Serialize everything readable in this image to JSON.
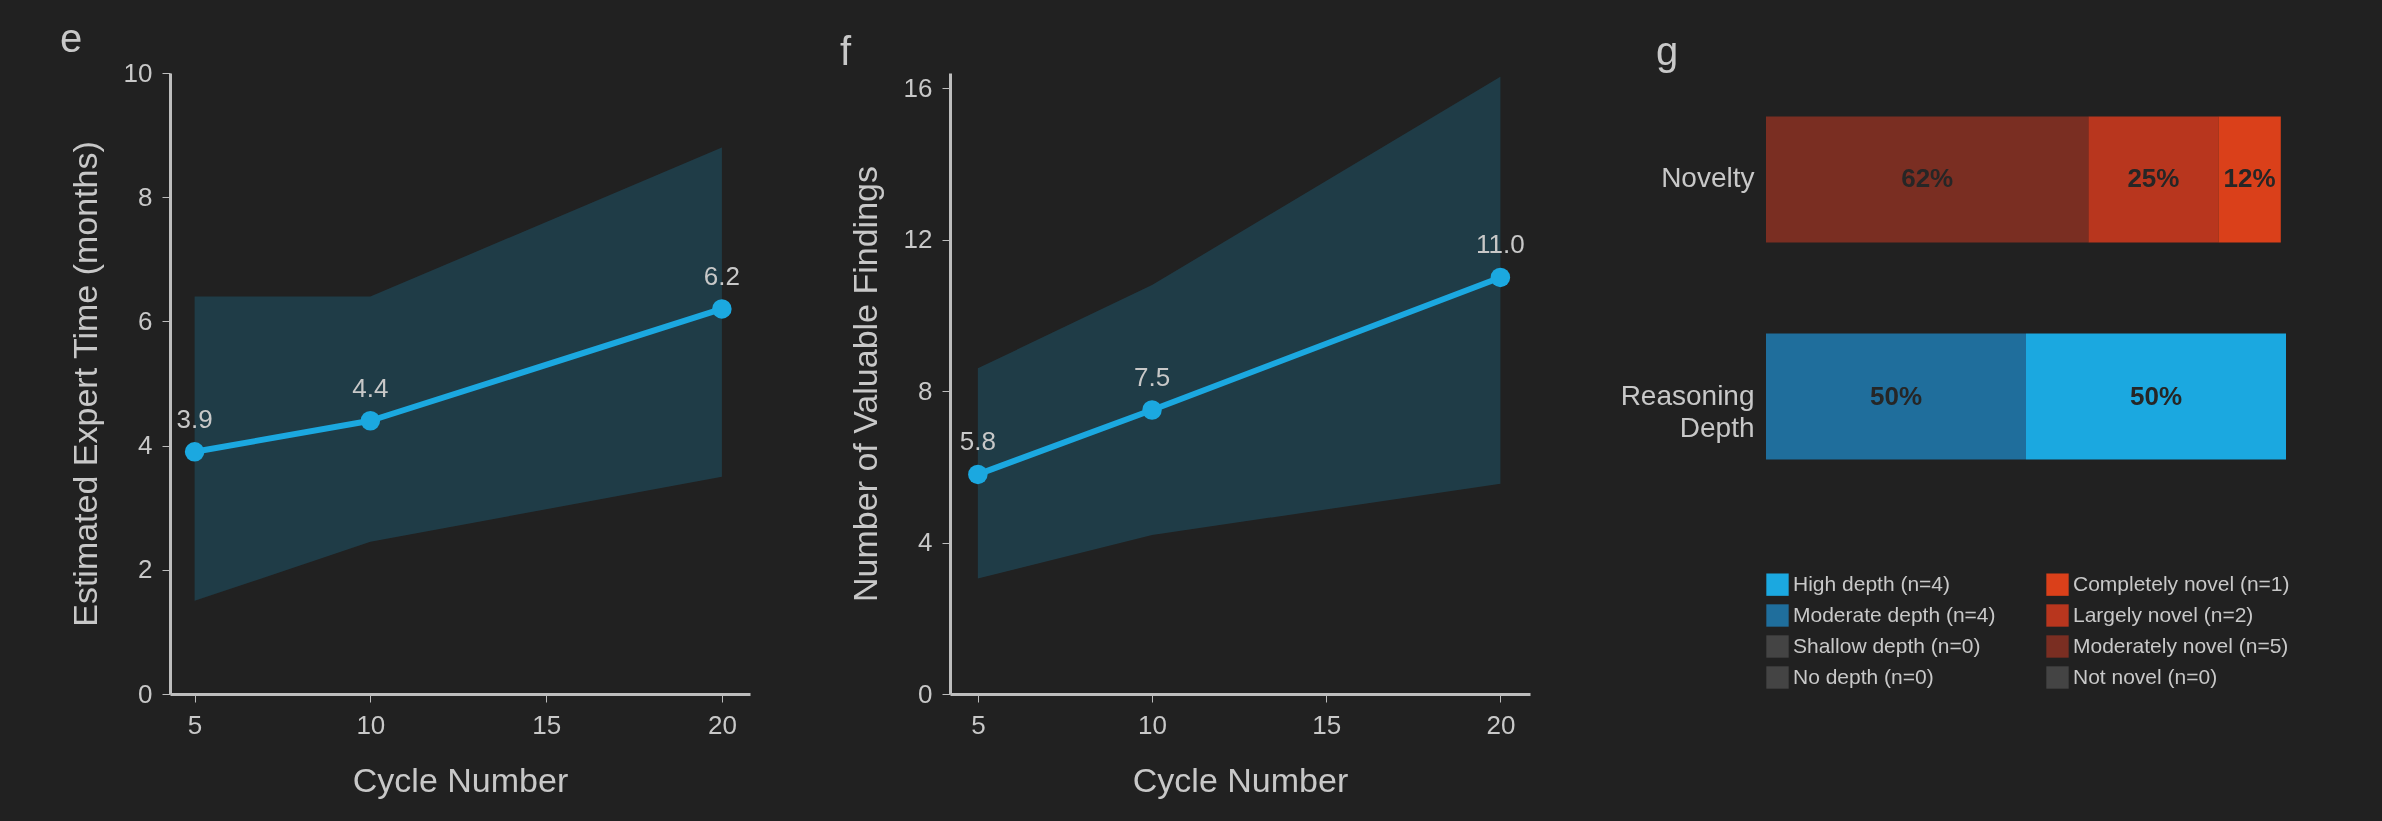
{
  "chart_data": [
    {
      "type": "line",
      "title": "e",
      "xlabel": "Cycle Number",
      "ylabel": "Estimated Expert Time (months)",
      "x": [
        5,
        10,
        20
      ],
      "series": [
        {
          "color": "#1ba8e0",
          "values": [
            3.9,
            4.4,
            6.2
          ],
          "lower": [
            1.5,
            2.45,
            3.5
          ],
          "upper": [
            6.4,
            6.4,
            8.8
          ],
          "value_labels": [
            "3.9",
            "4.4",
            "6.2"
          ]
        }
      ],
      "xlim": [
        4.3,
        20.8
      ],
      "ylim": [
        0,
        10
      ],
      "xticks": [
        5,
        10,
        15,
        20
      ],
      "yticks": [
        0,
        2,
        4,
        6,
        8,
        10
      ],
      "marker": "circle",
      "grid": false
    },
    {
      "type": "line",
      "title": "f",
      "xlabel": "Cycle Number",
      "ylabel": "Number of Valuable Findings",
      "x": [
        5,
        10,
        20
      ],
      "series": [
        {
          "color": "#1ba8e0",
          "values": [
            5.8,
            7.5,
            11.0
          ],
          "lower": [
            3.05,
            4.2,
            5.55
          ],
          "upper": [
            8.6,
            10.8,
            16.3
          ],
          "value_labels": [
            "5.8",
            "7.5",
            "11.0"
          ]
        }
      ],
      "xlim": [
        4.2,
        20.85
      ],
      "ylim": [
        0,
        16.4
      ],
      "xticks": [
        5,
        10,
        15,
        20
      ],
      "yticks": [
        0,
        4,
        8,
        12,
        16
      ],
      "marker": "circle",
      "grid": false
    },
    {
      "type": "bar",
      "title": "g",
      "orientation": "horizontal",
      "stacked": true,
      "categories": [
        "Novelty",
        "Reasoning Depth"
      ],
      "legend": "bottom",
      "series": [
        {
          "name": "Not novel (n=0)",
          "color": "#444444",
          "values": [
            0,
            null
          ],
          "value_labels": [
            null,
            null
          ]
        },
        {
          "name": "Moderately novel (n=5)",
          "color": "#7a2e22",
          "values": [
            62,
            null
          ],
          "value_labels": [
            "62%",
            null
          ]
        },
        {
          "name": "Largely novel (n=2)",
          "color": "#b8361e",
          "values": [
            25,
            null
          ],
          "value_labels": [
            "25%",
            null
          ]
        },
        {
          "name": "Completely novel (n=1)",
          "color": "#da401a",
          "values": [
            12,
            null
          ],
          "value_labels": [
            "12%",
            null
          ]
        },
        {
          "name": "No depth (n=0)",
          "color": "#444444",
          "values": [
            null,
            0
          ],
          "value_labels": [
            null,
            null
          ]
        },
        {
          "name": "Shallow depth (n=0)",
          "color": "#444444",
          "values": [
            null,
            0
          ],
          "value_labels": [
            null,
            null
          ]
        },
        {
          "name": "Moderate depth (n=4)",
          "color": "#1f6e9c",
          "values": [
            null,
            50
          ],
          "value_labels": [
            null,
            "50%"
          ]
        },
        {
          "name": "High depth (n=4)",
          "color": "#1ba8e0",
          "values": [
            null,
            50
          ],
          "value_labels": [
            null,
            "50%"
          ]
        }
      ]
    }
  ]
}
